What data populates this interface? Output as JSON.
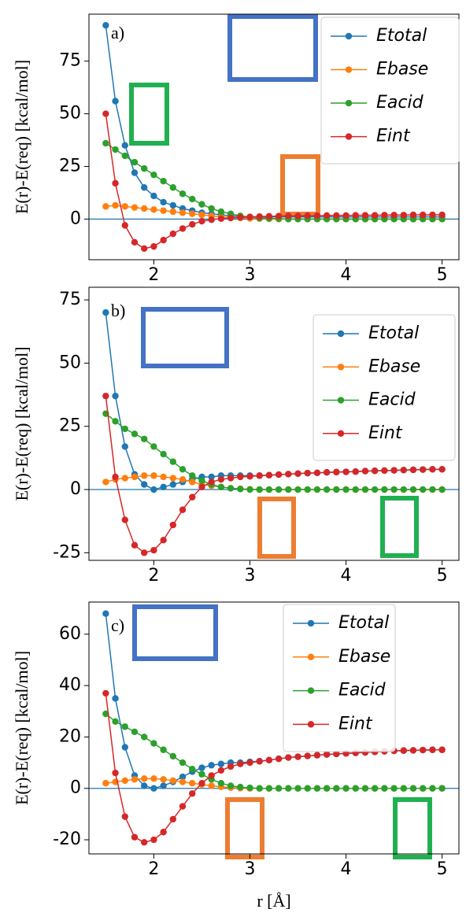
{
  "chart_data": [
    {
      "type": "line",
      "panel_label": "a)",
      "ylabel": "E(r)-E(req) [kcal/mol]",
      "x": [
        1.5,
        1.6,
        1.7,
        1.8,
        1.9,
        2.0,
        2.1,
        2.2,
        2.3,
        2.4,
        2.5,
        2.6,
        2.7,
        2.8,
        2.9,
        3.0,
        3.1,
        3.2,
        3.3,
        3.4,
        3.5,
        3.6,
        3.7,
        3.8,
        3.9,
        4.0,
        4.1,
        4.2,
        4.3,
        4.4,
        4.5,
        4.6,
        4.7,
        4.8,
        4.9,
        5.0
      ],
      "xlim": [
        1.325,
        5.175
      ],
      "xticks": [
        2,
        3,
        4,
        5
      ],
      "ylim": [
        -19.3,
        97.3
      ],
      "yticks": [
        0,
        25,
        50,
        75
      ],
      "hline": 0,
      "legend": "upper right",
      "series": [
        {
          "name": "Etotal",
          "color": "#1f77b4",
          "values": [
            92,
            56,
            35,
            22,
            15,
            11,
            8,
            6.5,
            5,
            4,
            3,
            2.5,
            2,
            1.5,
            1.2,
            1,
            1,
            1,
            1,
            1,
            1,
            1,
            1,
            1,
            1,
            1,
            1,
            1,
            1,
            1,
            1,
            1,
            1,
            1,
            1,
            1
          ]
        },
        {
          "name": "Ebase",
          "color": "#ff7f0e",
          "values": [
            6,
            6.5,
            6,
            5.5,
            5,
            4.5,
            4,
            3.5,
            3,
            2.5,
            2,
            1.5,
            1,
            0.8,
            0.5,
            0.3,
            0.2,
            0.1,
            0,
            0,
            0,
            0,
            0,
            0,
            0,
            0,
            0,
            0,
            0,
            0,
            0,
            0,
            0,
            0,
            0,
            0
          ]
        },
        {
          "name": "Eacid",
          "color": "#2ca02c",
          "values": [
            36,
            33,
            30,
            27,
            24,
            21,
            18,
            15,
            12,
            9.5,
            7,
            5,
            3.5,
            2.5,
            1.5,
            1,
            0.5,
            0.3,
            0.2,
            0,
            0,
            0,
            0,
            0,
            0,
            0,
            0,
            0,
            0,
            0,
            0,
            0,
            0,
            0,
            0,
            0
          ]
        },
        {
          "name": "Eint",
          "color": "#d62728",
          "values": [
            50,
            17,
            -3,
            -11,
            -14,
            -13,
            -10,
            -7,
            -4.5,
            -2.5,
            -1,
            -0.3,
            0.2,
            0.5,
            0.8,
            1,
            1.2,
            1.3,
            1.4,
            1.5,
            1.5,
            1.6,
            1.6,
            1.7,
            1.7,
            1.7,
            1.8,
            1.8,
            1.8,
            1.9,
            1.9,
            1.9,
            2,
            2,
            2,
            2
          ]
        }
      ]
    },
    {
      "type": "line",
      "panel_label": "b)",
      "ylabel": "E(r)-E(req) [kcal/mol]",
      "x": [
        1.5,
        1.6,
        1.7,
        1.8,
        1.9,
        2.0,
        2.1,
        2.2,
        2.3,
        2.4,
        2.5,
        2.6,
        2.7,
        2.8,
        2.9,
        3.0,
        3.1,
        3.2,
        3.3,
        3.4,
        3.5,
        3.6,
        3.7,
        3.8,
        3.9,
        4.0,
        4.1,
        4.2,
        4.3,
        4.4,
        4.5,
        4.6,
        4.7,
        4.8,
        4.9,
        5.0
      ],
      "xlim": [
        1.325,
        5.175
      ],
      "xticks": [
        2,
        3,
        4,
        5
      ],
      "ylim": [
        -28,
        80
      ],
      "yticks": [
        -25,
        0,
        25,
        50,
        75
      ],
      "hline": 0,
      "legend": "upper right",
      "series": [
        {
          "name": "Etotal",
          "color": "#1f77b4",
          "values": [
            70,
            37,
            17,
            6,
            2,
            0,
            1,
            2,
            3,
            4,
            5,
            5,
            5.5,
            5.5,
            5.5,
            5.5,
            5.5,
            5.7,
            5.9,
            6.1,
            6.3,
            6.5,
            6.6,
            6.8,
            6.9,
            7,
            7.1,
            7.3,
            7.4,
            7.5,
            7.6,
            7.7,
            7.8,
            7.9,
            8,
            8
          ]
        },
        {
          "name": "Ebase",
          "color": "#ff7f0e",
          "values": [
            3,
            4,
            4.5,
            5,
            5.5,
            5.5,
            5,
            4.5,
            4,
            3,
            2,
            1.5,
            1,
            0.5,
            0.3,
            0.1,
            0,
            0,
            0,
            0,
            0,
            0,
            0,
            0,
            0,
            0,
            0,
            0,
            0,
            0,
            0,
            0,
            0,
            0,
            0,
            0
          ]
        },
        {
          "name": "Eacid",
          "color": "#2ca02c",
          "values": [
            30,
            27,
            24,
            22,
            20,
            17,
            14,
            11,
            8,
            5.5,
            3.5,
            2,
            1,
            0.5,
            0.2,
            0,
            0,
            0,
            0,
            0,
            0,
            0,
            0,
            0,
            0,
            0,
            0,
            0,
            0,
            0,
            0,
            0,
            0,
            0,
            0,
            0
          ]
        },
        {
          "name": "Eint",
          "color": "#d62728",
          "values": [
            37,
            5,
            -12,
            -22,
            -25,
            -24,
            -20,
            -14,
            -8,
            -3,
            1,
            3,
            4,
            4.5,
            5,
            5.2,
            5.5,
            5.7,
            5.9,
            6.1,
            6.3,
            6.5,
            6.6,
            6.8,
            6.9,
            7,
            7.1,
            7.3,
            7.4,
            7.5,
            7.6,
            7.7,
            7.8,
            7.9,
            8,
            8
          ]
        }
      ]
    },
    {
      "type": "line",
      "panel_label": "c)",
      "ylabel": "E(r)-E(req) [kcal/mol]",
      "xlabel": "r [Å]",
      "x": [
        1.5,
        1.6,
        1.7,
        1.8,
        1.9,
        2.0,
        2.1,
        2.2,
        2.3,
        2.4,
        2.5,
        2.6,
        2.7,
        2.8,
        2.9,
        3.0,
        3.1,
        3.2,
        3.3,
        3.4,
        3.5,
        3.6,
        3.7,
        3.8,
        3.9,
        4.0,
        4.1,
        4.2,
        4.3,
        4.4,
        4.5,
        4.6,
        4.7,
        4.8,
        4.9,
        5.0
      ],
      "xlim": [
        1.325,
        5.175
      ],
      "xticks": [
        2,
        3,
        4,
        5
      ],
      "ylim": [
        -25.5,
        72.5
      ],
      "yticks": [
        -20,
        0,
        20,
        40,
        60
      ],
      "hline": 0,
      "legend": "upper right",
      "series": [
        {
          "name": "Etotal",
          "color": "#1f77b4",
          "values": [
            68,
            35,
            16,
            5,
            1,
            0,
            1,
            2.5,
            4.5,
            6.5,
            8,
            9,
            9.5,
            10,
            10,
            10.3,
            10.6,
            11,
            11.5,
            12,
            12.3,
            12.6,
            12.9,
            13.2,
            13.4,
            13.6,
            13.8,
            14,
            14.2,
            14.4,
            14.6,
            14.7,
            14.8,
            14.9,
            15,
            15
          ]
        },
        {
          "name": "Ebase",
          "color": "#ff7f0e",
          "values": [
            2,
            2.5,
            3,
            3.5,
            3.8,
            3.8,
            3.5,
            3,
            2.5,
            2,
            1.5,
            1,
            0.6,
            0.3,
            0.1,
            0,
            0,
            0,
            0,
            0,
            0,
            0,
            0,
            0,
            0,
            0,
            0,
            0,
            0,
            0,
            0,
            0,
            0,
            0,
            0,
            0
          ]
        },
        {
          "name": "Eacid",
          "color": "#2ca02c",
          "values": [
            29,
            26,
            24,
            22,
            20,
            17.5,
            15,
            12.5,
            10,
            7.5,
            5.5,
            3.5,
            2,
            1,
            0.5,
            0.2,
            0,
            0,
            0,
            0,
            0,
            0,
            0,
            0,
            0,
            0,
            0,
            0,
            0,
            0,
            0,
            0,
            0,
            0,
            0,
            0
          ]
        },
        {
          "name": "Eint",
          "color": "#d62728",
          "values": [
            37,
            6,
            -11,
            -19,
            -21,
            -20,
            -17,
            -12,
            -7,
            -2,
            2,
            5,
            7,
            8.5,
            9.5,
            10,
            10.5,
            11,
            11.5,
            12,
            12.3,
            12.6,
            12.9,
            13.2,
            13.4,
            13.6,
            13.8,
            14,
            14.2,
            14.4,
            14.6,
            14.7,
            14.8,
            14.9,
            15,
            15
          ]
        }
      ]
    }
  ]
}
